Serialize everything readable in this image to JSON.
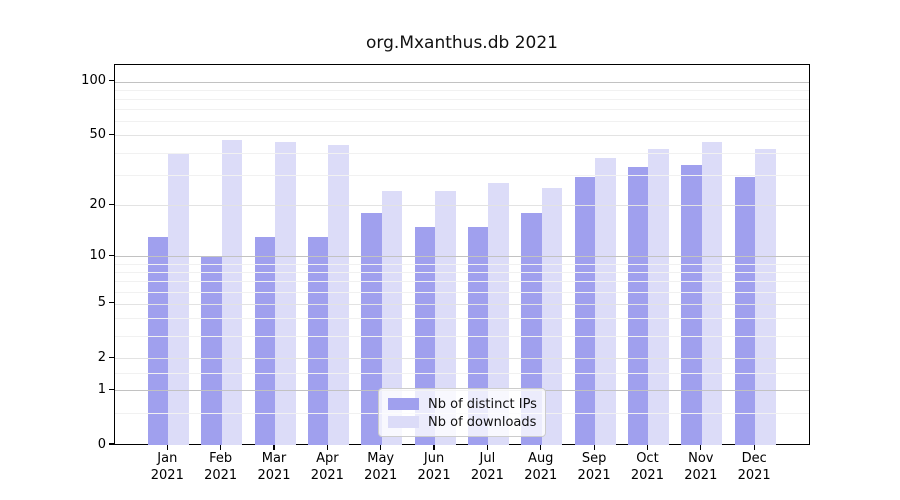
{
  "figure": {
    "background": "#ffffff"
  },
  "chart_data": {
    "type": "bar",
    "title": "org.Mxanthus.db 2021",
    "x_categories": [
      "Jan",
      "Feb",
      "Mar",
      "Apr",
      "May",
      "Jun",
      "Jul",
      "Aug",
      "Sep",
      "Oct",
      "Nov",
      "Dec"
    ],
    "x_year_label": "2021",
    "series": [
      {
        "name": "Nb of distinct IPs",
        "color": "#a0a0ee",
        "values": [
          13,
          10,
          13,
          13,
          18,
          15,
          15,
          18,
          29,
          33,
          34,
          29
        ]
      },
      {
        "name": "Nb of downloads",
        "color": "#dcdcf8",
        "values": [
          39,
          47,
          46,
          44,
          24,
          24,
          27,
          25,
          37,
          42,
          46,
          42
        ]
      }
    ],
    "y_scale": "log1p",
    "ylim": [
      0,
      124
    ],
    "y_ticks": [
      0,
      1,
      2,
      5,
      10,
      20,
      50,
      100
    ],
    "y_emphasized_ticks": [
      1,
      10,
      100
    ],
    "y_minor_ticks": [
      0.5,
      1.5,
      3,
      4,
      6,
      7,
      8,
      9,
      30,
      40,
      60,
      70,
      80,
      90
    ],
    "grid": "horizontal",
    "legend": {
      "position": "bottom-center",
      "entries": [
        "Nb of distinct IPs",
        "Nb of downloads"
      ]
    }
  }
}
